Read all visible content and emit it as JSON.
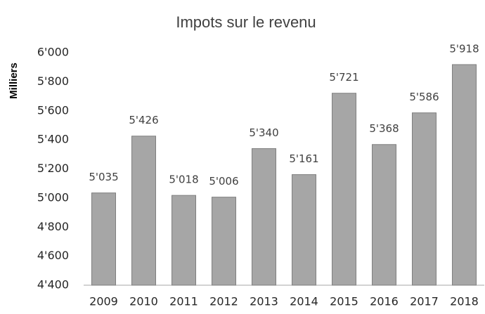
{
  "chart_data": {
    "type": "bar",
    "title": "Impots sur le revenu",
    "y_label": "Milliers",
    "categories": [
      "2009",
      "2010",
      "2011",
      "2012",
      "2013",
      "2014",
      "2015",
      "2016",
      "2017",
      "2018"
    ],
    "values": [
      5035,
      5426,
      5018,
      5006,
      5340,
      5161,
      5721,
      5368,
      5586,
      5918
    ],
    "value_labels": [
      "5'035",
      "5'426",
      "5'018",
      "5'006",
      "5'340",
      "5'161",
      "5'721",
      "5'368",
      "5'586",
      "5'918"
    ],
    "color": "#a6a6a6",
    "ylim": [
      4400,
      6000
    ],
    "yticks": [
      {
        "value": 4400,
        "label": "4'400"
      },
      {
        "value": 4600,
        "label": "4'600"
      },
      {
        "value": 4800,
        "label": "4'800"
      },
      {
        "value": 5000,
        "label": "5'000"
      },
      {
        "value": 5200,
        "label": "5'200"
      },
      {
        "value": 5400,
        "label": "5'400"
      },
      {
        "value": 5600,
        "label": "5'600"
      },
      {
        "value": 5800,
        "label": "5'800"
      },
      {
        "value": 6000,
        "label": "6'000"
      }
    ],
    "grid": false
  }
}
